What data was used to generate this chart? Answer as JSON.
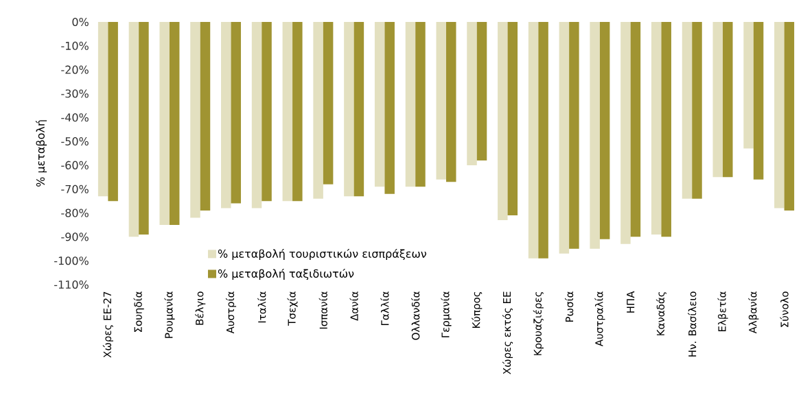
{
  "chart_data": {
    "type": "bar",
    "ylabel": "% μεταβολή",
    "categories": [
      "Χώρες ΕΕ-27",
      "Σουηδία",
      "Ρουμανία",
      "Βέλγιο",
      "Αυστρία",
      "Ιταλία",
      "Τσεχία",
      "Ισπανία",
      "Δανία",
      "Γαλλία",
      "Ολλανδία",
      "Γερμανία",
      "Κύπρος",
      "Χώρες εκτός ΕΕ",
      "Κρουαζιέρες",
      "Ρωσία",
      "Αυστραλία",
      "ΗΠΑ",
      "Καναδάς",
      "Ην. Βασίλειο",
      "Ελβετία",
      "Αλβανία",
      "Σύνολο"
    ],
    "series": [
      {
        "name": "% μεταβολή τουριστικών εισπράξεων",
        "color": "#e3e0c0",
        "values": [
          -73,
          -90,
          -85,
          -82,
          -78,
          -78,
          -75,
          -74,
          -73,
          -69,
          -69,
          -66,
          -60,
          -83,
          -99,
          -97,
          -95,
          -93,
          -89,
          -74,
          -65,
          -53,
          -78
        ]
      },
      {
        "name": "% μεταβολή ταξιδιωτών",
        "color": "#a09432",
        "values": [
          -75,
          -89,
          -85,
          -79,
          -76,
          -75,
          -75,
          -68,
          -73,
          -72,
          -69,
          -67,
          -58,
          -81,
          -99,
          -95,
          -91,
          -90,
          -90,
          -74,
          -65,
          -66,
          -79
        ]
      }
    ],
    "ylim": [
      -110,
      0
    ],
    "yticks": [
      {
        "value": 0,
        "label": "0%"
      },
      {
        "value": -10,
        "label": "-10%"
      },
      {
        "value": -20,
        "label": "-20%"
      },
      {
        "value": -30,
        "label": "-30%"
      },
      {
        "value": -40,
        "label": "-40%"
      },
      {
        "value": -50,
        "label": "-50%"
      },
      {
        "value": -60,
        "label": "-60%"
      },
      {
        "value": -70,
        "label": "-70%"
      },
      {
        "value": -80,
        "label": "-80%"
      },
      {
        "value": -90,
        "label": "-90%"
      },
      {
        "value": -100,
        "label": "-100%"
      },
      {
        "value": -110,
        "label": "-110%"
      }
    ],
    "legend": "bottom",
    "grid": false
  }
}
